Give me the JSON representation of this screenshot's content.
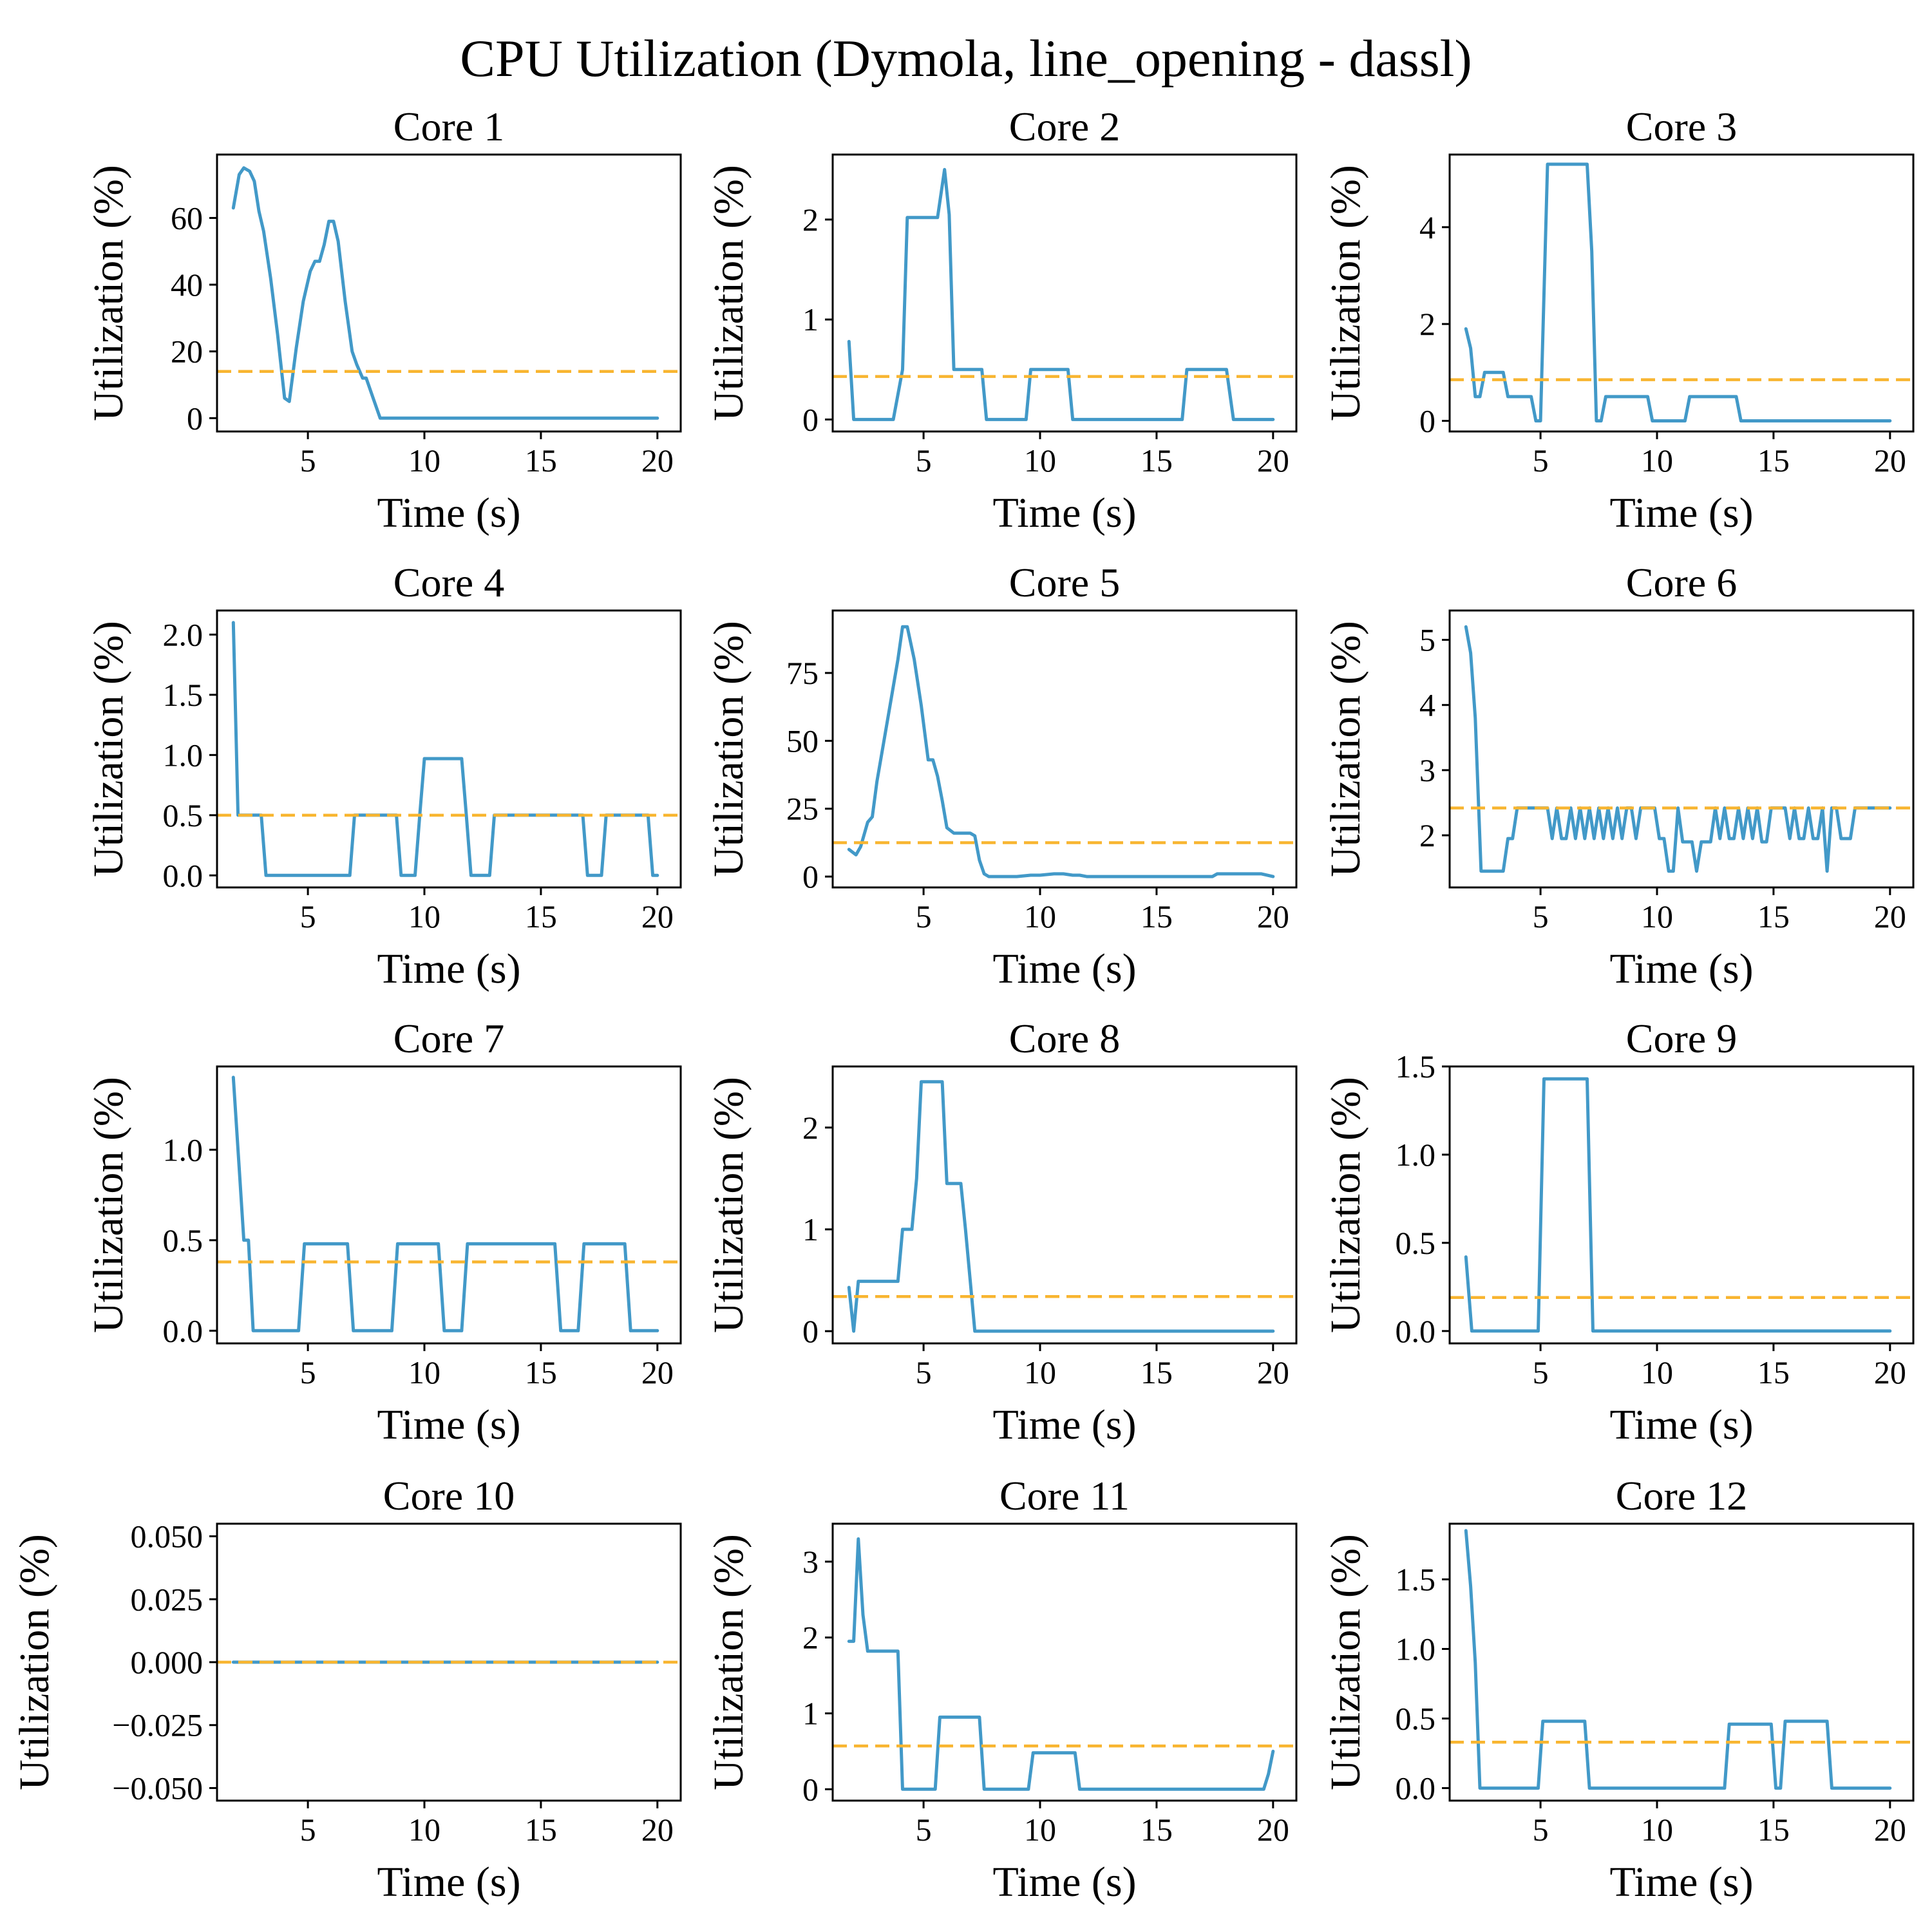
{
  "chart_data": {
    "type": "line",
    "title": "CPU Utilization (Dymola, line_opening - dassl)",
    "layout": {
      "rows": 4,
      "cols": 3
    },
    "colors": {
      "series": "#4299c8",
      "mean": "#f8b530"
    },
    "xlabel": "Time (s)",
    "ylabel": "Utilization (%)",
    "x_ticks": [
      "5",
      "10",
      "15",
      "20"
    ],
    "subplots": [
      {
        "title": "Core 1",
        "xlim": [
          1.1,
          21
        ],
        "ylim": [
          -4,
          79
        ],
        "yticks": [
          0,
          20,
          40,
          60
        ],
        "ytick_labels": [
          "0",
          "20",
          "40",
          "60"
        ],
        "mean": 14,
        "x": [
          1.8,
          2.05,
          2.25,
          2.5,
          2.7,
          2.9,
          3.1,
          3.4,
          3.7,
          4.0,
          4.2,
          4.5,
          4.8,
          5.1,
          5.3,
          5.5,
          5.7,
          5.9,
          6.1,
          6.3,
          6.6,
          6.9,
          7.1,
          7.35,
          7.5,
          7.8,
          8.1,
          20
        ],
        "y": [
          63,
          73,
          75,
          74,
          71,
          62,
          56,
          42,
          25,
          6,
          5,
          21,
          35,
          44,
          47,
          47,
          52,
          59,
          59,
          53,
          35,
          20,
          16,
          12,
          12,
          6,
          0,
          0
        ]
      },
      {
        "title": "Core 2",
        "xlim": [
          1.1,
          21
        ],
        "ylim": [
          -0.12,
          2.65
        ],
        "yticks": [
          0,
          1,
          2
        ],
        "ytick_labels": [
          "0",
          "1",
          "2"
        ],
        "mean": 0.43,
        "x": [
          1.8,
          2.0,
          2.1,
          3.7,
          4.1,
          4.3,
          5.6,
          5.9,
          6.1,
          6.3,
          7.5,
          7.7,
          9.4,
          9.6,
          11.2,
          11.4,
          16.1,
          16.3,
          18.0,
          18.3,
          20
        ],
        "y": [
          0.78,
          0,
          0,
          0,
          0.5,
          2.02,
          2.02,
          2.5,
          2.05,
          0.5,
          0.5,
          0,
          0,
          0.5,
          0.5,
          0,
          0,
          0.5,
          0.5,
          0,
          0
        ]
      },
      {
        "title": "Core 3",
        "xlim": [
          1.1,
          21
        ],
        "ylim": [
          -0.22,
          5.5
        ],
        "yticks": [
          0,
          2,
          4
        ],
        "ytick_labels": [
          "0",
          "2",
          "4"
        ],
        "mean": 0.85,
        "x": [
          1.8,
          2.0,
          2.2,
          2.4,
          2.6,
          3.4,
          3.6,
          4.6,
          4.8,
          5.0,
          5.3,
          5.5,
          7.0,
          7.2,
          7.4,
          7.6,
          7.8,
          9.6,
          9.8,
          11.2,
          11.4,
          13.4,
          13.6,
          20
        ],
        "y": [
          1.9,
          1.5,
          0.5,
          0.5,
          1.0,
          1.0,
          0.5,
          0.5,
          0,
          0,
          5.3,
          5.3,
          5.3,
          3.5,
          0,
          0,
          0.5,
          0.5,
          0,
          0,
          0.5,
          0.5,
          0,
          0
        ]
      },
      {
        "title": "Core 4",
        "xlim": [
          1.1,
          21
        ],
        "ylim": [
          -0.1,
          2.2
        ],
        "yticks": [
          0,
          0.5,
          1,
          1.5,
          2
        ],
        "ytick_labels": [
          "0.0",
          "0.5",
          "1.0",
          "1.5",
          "2.0"
        ],
        "mean": 0.5,
        "x": [
          1.8,
          2.0,
          3.0,
          3.2,
          6.8,
          7.0,
          8.8,
          9.0,
          9.6,
          9.8,
          10.0,
          11.6,
          11.8,
          12.0,
          12.8,
          13.0,
          16.8,
          17.0,
          17.6,
          17.8,
          19.6,
          19.8,
          20
        ],
        "y": [
          2.1,
          0.5,
          0.5,
          0,
          0,
          0.5,
          0.5,
          0,
          0,
          0.5,
          0.97,
          0.97,
          0.5,
          0,
          0,
          0.5,
          0.5,
          0,
          0,
          0.5,
          0.5,
          0,
          0
        ]
      },
      {
        "title": "Core 5",
        "xlim": [
          1.1,
          21
        ],
        "ylim": [
          -4,
          98
        ],
        "yticks": [
          0,
          25,
          50,
          75
        ],
        "ytick_labels": [
          "0",
          "25",
          "50",
          "75"
        ],
        "mean": 12.5,
        "x": [
          1.8,
          2.1,
          2.3,
          2.6,
          2.8,
          3.0,
          3.3,
          3.6,
          3.9,
          4.1,
          4.3,
          4.6,
          4.9,
          5.2,
          5.4,
          5.6,
          5.8,
          6.0,
          6.3,
          6.7,
          7.0,
          7.2,
          7.4,
          7.6,
          7.8,
          8.5,
          9.0,
          9.6,
          10.0,
          10.6,
          11.0,
          11.4,
          11.7,
          12.0,
          17.4,
          17.6,
          19.5,
          20
        ],
        "y": [
          10,
          8,
          11,
          20,
          22,
          35,
          50,
          65,
          80,
          92,
          92,
          80,
          63,
          43,
          43,
          37,
          28,
          18,
          16,
          16,
          16,
          15,
          6,
          1,
          0,
          0,
          0,
          0.5,
          0.5,
          1,
          1,
          0.5,
          0.5,
          0,
          0,
          1,
          1,
          0
        ]
      },
      {
        "title": "Core 6",
        "xlim": [
          1.1,
          21
        ],
        "ylim": [
          1.2,
          5.45
        ],
        "yticks": [
          2,
          3,
          4,
          5
        ],
        "ytick_labels": [
          "2",
          "3",
          "4",
          "5"
        ],
        "mean": 2.42,
        "x": [
          1.8,
          2.0,
          2.2,
          2.45,
          3.4,
          3.6,
          3.8,
          4.0,
          4.2,
          5.3,
          5.5,
          5.7,
          5.9,
          6.1,
          6.3,
          6.5,
          6.7,
          6.9,
          7.1,
          7.3,
          7.5,
          7.7,
          7.9,
          8.1,
          8.3,
          8.5,
          8.7,
          8.9,
          9.1,
          9.3,
          9.5,
          9.7,
          9.9,
          10.1,
          10.3,
          10.5,
          10.7,
          10.9,
          11.1,
          11.3,
          11.5,
          11.7,
          11.9,
          12.1,
          12.3,
          12.5,
          12.7,
          12.9,
          13.1,
          13.3,
          13.5,
          13.7,
          13.9,
          14.1,
          14.3,
          14.5,
          14.7,
          14.9,
          15.1,
          15.3,
          15.5,
          15.7,
          15.9,
          16.1,
          16.3,
          16.5,
          16.7,
          16.9,
          17.1,
          17.3,
          17.5,
          17.7,
          17.9,
          18.1,
          18.3,
          18.5,
          18.7,
          18.9,
          19.1,
          19.3,
          19.5,
          19.7,
          20
        ],
        "y": [
          5.2,
          4.8,
          3.8,
          1.45,
          1.45,
          1.95,
          1.95,
          2.42,
          2.42,
          2.42,
          1.95,
          2.42,
          1.95,
          1.95,
          2.42,
          1.95,
          2.42,
          1.95,
          2.42,
          1.95,
          2.42,
          1.95,
          2.42,
          1.95,
          2.42,
          1.95,
          2.42,
          2.42,
          1.95,
          2.42,
          2.42,
          2.42,
          2.42,
          1.95,
          1.95,
          1.45,
          1.45,
          2.42,
          1.9,
          1.9,
          1.9,
          1.45,
          1.9,
          1.9,
          1.9,
          2.42,
          1.95,
          2.42,
          1.95,
          1.95,
          2.42,
          1.95,
          2.42,
          1.95,
          2.42,
          1.9,
          1.9,
          2.42,
          2.42,
          2.42,
          2.42,
          1.95,
          2.42,
          1.95,
          1.95,
          2.42,
          1.95,
          1.95,
          2.42,
          1.45,
          2.42,
          2.42,
          1.95,
          1.95,
          1.95,
          2.42,
          2.42,
          2.42,
          2.42,
          2.42,
          2.42,
          2.42,
          2.42
        ]
      },
      {
        "title": "Core 7",
        "xlim": [
          1.1,
          21
        ],
        "ylim": [
          -0.07,
          1.46
        ],
        "yticks": [
          0,
          0.5,
          1
        ],
        "ytick_labels": [
          "0.0",
          "0.5",
          "1.0"
        ],
        "mean": 0.38,
        "x": [
          1.8,
          2.05,
          2.25,
          2.45,
          2.65,
          4.6,
          4.85,
          6.7,
          6.95,
          8.6,
          8.85,
          10.6,
          10.85,
          11.6,
          11.85,
          15.6,
          15.85,
          16.6,
          16.85,
          18.6,
          18.85,
          20
        ],
        "y": [
          1.4,
          0.9,
          0.5,
          0.5,
          0,
          0,
          0.48,
          0.48,
          0,
          0,
          0.48,
          0.48,
          0,
          0,
          0.48,
          0.48,
          0,
          0,
          0.48,
          0.48,
          0,
          0
        ]
      },
      {
        "title": "Core 8",
        "xlim": [
          1.1,
          21
        ],
        "ylim": [
          -0.12,
          2.6
        ],
        "yticks": [
          0,
          1,
          2
        ],
        "ytick_labels": [
          "0",
          "1",
          "2"
        ],
        "mean": 0.34,
        "x": [
          1.8,
          2.0,
          2.2,
          3.9,
          4.1,
          4.5,
          4.7,
          4.9,
          5.0,
          5.8,
          6.0,
          6.6,
          6.8,
          7.0,
          7.2,
          20
        ],
        "y": [
          0.43,
          0,
          0.49,
          0.49,
          1.0,
          1.0,
          1.5,
          2.45,
          2.45,
          2.45,
          1.45,
          1.45,
          1.0,
          0.5,
          0,
          0
        ]
      },
      {
        "title": "Core 9",
        "xlim": [
          1.1,
          21
        ],
        "ylim": [
          -0.07,
          1.5
        ],
        "yticks": [
          0,
          0.5,
          1,
          1.5
        ],
        "ytick_labels": [
          "0.0",
          "0.5",
          "1.0",
          "1.5"
        ],
        "mean": 0.19,
        "x": [
          1.8,
          2.05,
          4.9,
          5.15,
          7.0,
          7.25,
          20
        ],
        "y": [
          0.42,
          0,
          0,
          1.43,
          1.43,
          0,
          0
        ]
      },
      {
        "title": "Core 10",
        "xlim": [
          1.1,
          21
        ],
        "ylim": [
          -0.055,
          0.055
        ],
        "yticks": [
          -0.05,
          -0.025,
          0,
          0.025,
          0.05
        ],
        "ytick_labels": [
          "−0.050",
          "−0.025",
          "0.000",
          "0.025",
          "0.050"
        ],
        "mean": 0,
        "x": [
          1.8,
          20
        ],
        "y": [
          0,
          0
        ]
      },
      {
        "title": "Core 11",
        "xlim": [
          1.1,
          21
        ],
        "ylim": [
          -0.15,
          3.5
        ],
        "yticks": [
          0,
          1,
          2,
          3
        ],
        "ytick_labels": [
          "0",
          "1",
          "2",
          "3"
        ],
        "mean": 0.57,
        "x": [
          1.8,
          2.0,
          2.2,
          2.4,
          2.6,
          3.9,
          4.1,
          5.5,
          5.7,
          7.4,
          7.6,
          9.5,
          9.7,
          11.5,
          11.7,
          19.6,
          19.8,
          20
        ],
        "y": [
          1.95,
          1.95,
          3.3,
          2.3,
          1.82,
          1.82,
          0,
          0,
          0.95,
          0.95,
          0,
          0,
          0.48,
          0.48,
          0,
          0,
          0.2,
          0.5
        ]
      },
      {
        "title": "Core 12",
        "xlim": [
          1.1,
          21
        ],
        "ylim": [
          -0.09,
          1.9
        ],
        "yticks": [
          0,
          0.5,
          1,
          1.5
        ],
        "ytick_labels": [
          "0.0",
          "0.5",
          "1.0",
          "1.5"
        ],
        "mean": 0.33,
        "x": [
          1.8,
          2.0,
          2.2,
          2.4,
          4.9,
          5.1,
          6.9,
          7.1,
          12.9,
          13.1,
          14.9,
          15.1,
          15.3,
          15.5,
          17.3,
          17.5,
          20
        ],
        "y": [
          1.85,
          1.45,
          0.9,
          0,
          0,
          0.48,
          0.48,
          0,
          0,
          0.46,
          0.46,
          0,
          0,
          0.48,
          0.48,
          0,
          0
        ]
      }
    ]
  }
}
